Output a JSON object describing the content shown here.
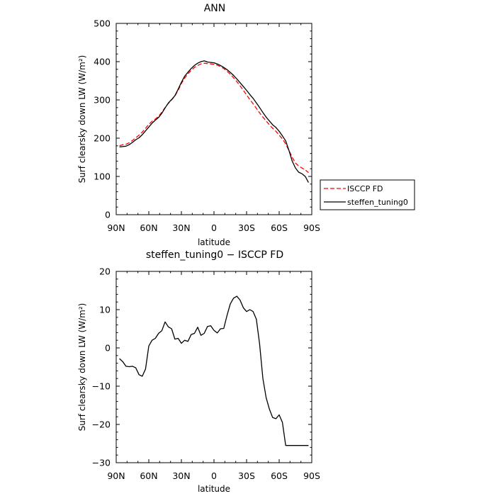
{
  "chart_data": [
    {
      "type": "line",
      "title": "ANN",
      "xlabel": "latitude",
      "ylabel": "Surf clearsky down LW (W/m²)",
      "x_ticks": [
        "90N",
        "60N",
        "30N",
        "0",
        "30S",
        "60S",
        "90S"
      ],
      "y_ticks": [
        "0",
        "100",
        "200",
        "300",
        "400",
        "500"
      ],
      "xlim": [
        90,
        -90
      ],
      "ylim": [
        0,
        500
      ],
      "legend_position": "right",
      "series": [
        {
          "name": "ISCCP FD",
          "color": "#ff0000",
          "style": "dashed",
          "x": [
            87,
            84,
            81,
            78,
            75,
            72,
            69,
            66,
            63,
            60,
            57,
            54,
            51,
            48,
            45,
            42,
            39,
            36,
            33,
            30,
            27,
            24,
            21,
            18,
            15,
            12,
            9,
            6,
            3,
            0,
            -3,
            -6,
            -9,
            -12,
            -15,
            -18,
            -21,
            -24,
            -27,
            -30,
            -33,
            -36,
            -39,
            -42,
            -45,
            -48,
            -51,
            -54,
            -57,
            -60,
            -63,
            -66,
            -69,
            -72,
            -75,
            -78,
            -81,
            -84,
            -87
          ],
          "values": [
            180,
            183,
            184,
            188,
            194,
            201,
            208,
            216,
            226,
            236,
            244,
            250,
            257,
            268,
            280,
            291,
            300,
            310,
            325,
            343,
            357,
            368,
            377,
            385,
            390,
            394,
            396,
            395,
            394,
            393,
            391,
            387,
            382,
            375,
            367,
            358,
            348,
            337,
            325,
            313,
            301,
            290,
            278,
            266,
            255,
            245,
            235,
            226,
            218,
            208,
            198,
            185,
            168,
            150,
            135,
            127,
            122,
            117,
            110
          ]
        },
        {
          "name": "steffen_tuning0",
          "color": "#000000",
          "style": "solid",
          "x": [
            87,
            84,
            81,
            78,
            75,
            72,
            69,
            66,
            63,
            60,
            57,
            54,
            51,
            48,
            45,
            42,
            39,
            36,
            33,
            30,
            27,
            24,
            21,
            18,
            15,
            12,
            9,
            6,
            3,
            0,
            -3,
            -6,
            -9,
            -12,
            -15,
            -18,
            -21,
            -24,
            -27,
            -30,
            -33,
            -36,
            -39,
            -42,
            -45,
            -48,
            -51,
            -54,
            -57,
            -60,
            -63,
            -66,
            -69,
            -72,
            -75,
            -78,
            -81,
            -84,
            -87
          ],
          "values": [
            177,
            178,
            179,
            183,
            189,
            196,
            201,
            209,
            219,
            229,
            239,
            247,
            254,
            265,
            279,
            292,
            301,
            311,
            328,
            346,
            362,
            372,
            382,
            390,
            396,
            400,
            402,
            399,
            398,
            397,
            394,
            390,
            385,
            379,
            372,
            364,
            355,
            345,
            335,
            325,
            314,
            304,
            292,
            280,
            267,
            255,
            245,
            235,
            228,
            218,
            206,
            193,
            168,
            140,
            122,
            111,
            107,
            100,
            84
          ]
        }
      ]
    },
    {
      "type": "line",
      "title": "steffen_tuning0 − ISCCP FD",
      "xlabel": "latitude",
      "ylabel": "Surf clearsky down LW (W/m²)",
      "x_ticks": [
        "90N",
        "60N",
        "30N",
        "0",
        "30S",
        "60S",
        "90S"
      ],
      "y_ticks": [
        "−30",
        "−20",
        "−10",
        "0",
        "10",
        "20"
      ],
      "xlim": [
        90,
        -90
      ],
      "ylim": [
        -30,
        20
      ],
      "series": [
        {
          "name": "",
          "color": "#000000",
          "style": "solid",
          "x": [
            87,
            84,
            81,
            78,
            75,
            72,
            69,
            66,
            63,
            60,
            57,
            54,
            51,
            48,
            45,
            42,
            39,
            36,
            33,
            30,
            27,
            24,
            21,
            18,
            15,
            12,
            9,
            6,
            3,
            0,
            -3,
            -6,
            -9,
            -12,
            -15,
            -18,
            -21,
            -24,
            -27,
            -30,
            -33,
            -36,
            -39,
            -42,
            -45,
            -48,
            -51,
            -54,
            -57,
            -60,
            -63,
            -66,
            -69,
            -72,
            -75,
            -78,
            -81,
            -84,
            -87
          ],
          "values": [
            -2.8,
            -3.6,
            -4.8,
            -4.9,
            -4.8,
            -5.2,
            -7.0,
            -7.4,
            -5.5,
            0.5,
            2.0,
            2.5,
            3.8,
            4.5,
            6.8,
            5.5,
            5.0,
            2.3,
            2.5,
            1.2,
            2.0,
            1.7,
            3.5,
            3.8,
            5.4,
            3.3,
            3.8,
            5.6,
            5.8,
            4.6,
            3.9,
            5.0,
            5.1,
            8.5,
            11.5,
            13.0,
            13.5,
            12.5,
            10.5,
            9.5,
            10.0,
            9.5,
            7.5,
            1.0,
            -8.0,
            -13.0,
            -16.0,
            -18.2,
            -18.5,
            -17.5,
            -19.5,
            -25.5,
            -25.5,
            -25.5,
            -25.5,
            -25.5,
            -25.5,
            -25.5,
            -25.5
          ]
        }
      ]
    }
  ]
}
